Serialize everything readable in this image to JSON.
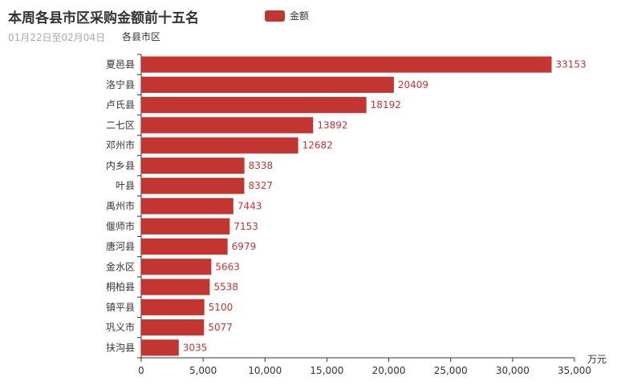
{
  "chart_data": {
    "type": "bar",
    "orientation": "horizontal",
    "title": "本周各县市区采购金额前十五名",
    "subtitle": "01月22日至02月04日",
    "ylabel": "各县市区",
    "xlabel": "万元",
    "legend": [
      "金额"
    ],
    "legend_position": "top",
    "grid": false,
    "xlim": [
      0,
      35000
    ],
    "xticks": [
      "0",
      "5,000",
      "10,000",
      "15,000",
      "20,000",
      "25,000",
      "30,000",
      "35,000"
    ],
    "categories": [
      "夏邑县",
      "洛宁县",
      "卢氏县",
      "二七区",
      "邓州市",
      "内乡县",
      "叶县",
      "禹州市",
      "偃师市",
      "唐河县",
      "金水区",
      "桐柏县",
      "镇平县",
      "巩义市",
      "扶沟县"
    ],
    "series": [
      {
        "name": "金额",
        "color": "#c23531",
        "values": [
          33153,
          20409,
          18192,
          13892,
          12682,
          8338,
          8327,
          7443,
          7153,
          6979,
          5663,
          5538,
          5100,
          5077,
          3035
        ]
      }
    ]
  }
}
